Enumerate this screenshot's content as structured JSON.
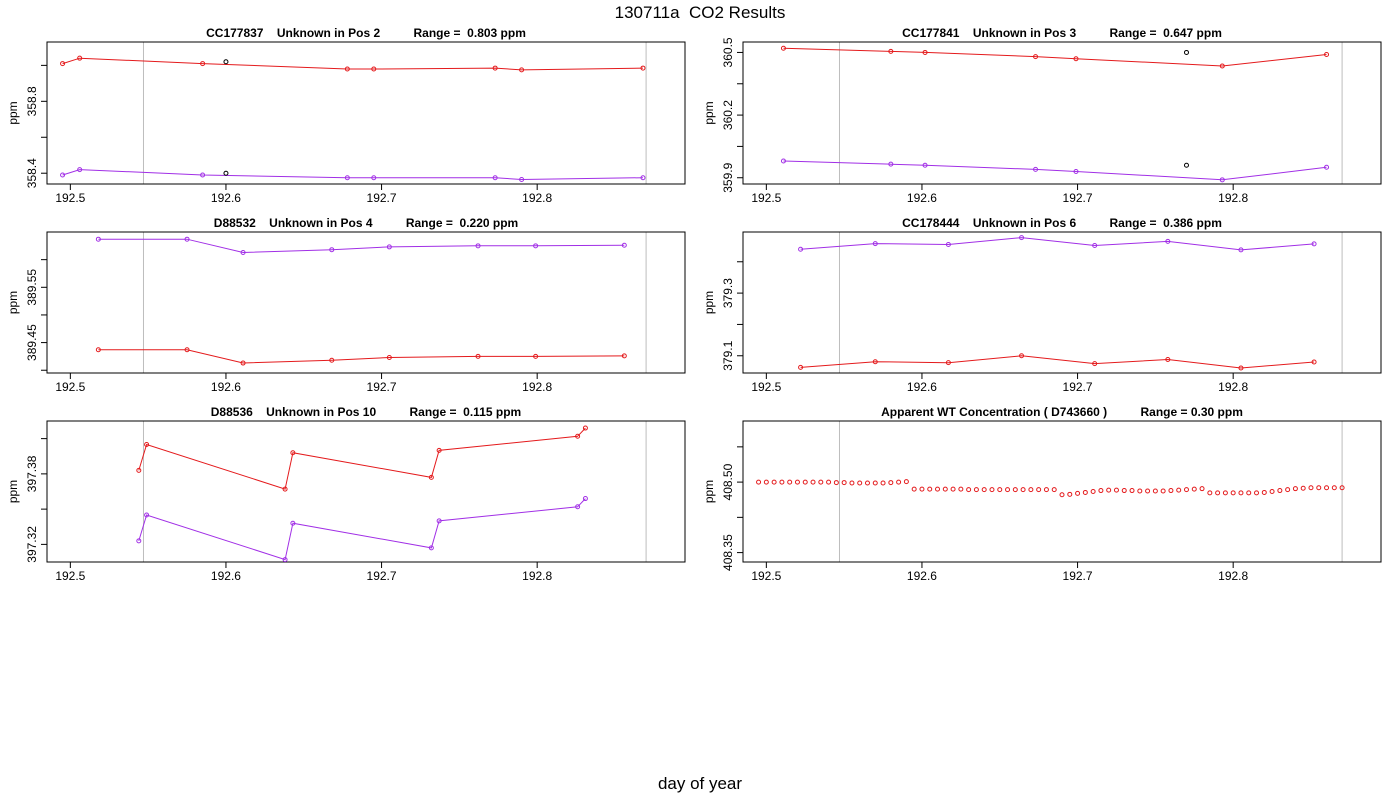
{
  "page_title": "130711a  CO2 Results",
  "x_axis_label": "day of year",
  "colors": {
    "series_a": "#e41a1c",
    "series_b": "#a12fe6",
    "outlier": "#000000",
    "vline": "#bdbdbd",
    "frame": "#000000"
  },
  "chart_data": [
    {
      "type": "line",
      "title": "CC177837    Unknown in Pos 2          Range =  0.803 ppm",
      "ylabel": "ppm",
      "xlim": [
        192.485,
        192.895
      ],
      "ylim": [
        358.34,
        359.13
      ],
      "x_ticks": [
        "192.5",
        "192.6",
        "192.7",
        "192.8"
      ],
      "y_ticks": [
        {
          "value": 358.4,
          "label": "358.4"
        },
        {
          "value": 358.6,
          "label": ""
        },
        {
          "value": 358.8,
          "label": "358.8"
        },
        {
          "value": 359.0,
          "label": ""
        }
      ],
      "vlines": [
        192.547,
        192.87
      ],
      "series": [
        {
          "color": "series_a",
          "x": [
            192.495,
            192.506,
            192.585,
            192.678,
            192.695,
            192.773,
            192.79,
            192.868
          ],
          "y": [
            359.01,
            359.04,
            359.01,
            358.98,
            358.98,
            358.985,
            358.975,
            358.985
          ]
        },
        {
          "color": "series_b",
          "x": [
            192.495,
            192.506,
            192.585,
            192.678,
            192.695,
            192.773,
            192.79,
            192.868
          ],
          "y": [
            358.39,
            358.42,
            358.39,
            358.375,
            358.375,
            358.375,
            358.365,
            358.375
          ]
        }
      ],
      "outliers": [
        {
          "x": 192.6,
          "y": 359.02
        },
        {
          "x": 192.6,
          "y": 358.4
        }
      ]
    },
    {
      "type": "line",
      "title": "CC177841    Unknown in Pos 3          Range =  0.647 ppm",
      "ylabel": "ppm",
      "xlim": [
        192.485,
        192.895
      ],
      "ylim": [
        359.87,
        360.55
      ],
      "x_ticks": [
        "192.5",
        "192.6",
        "192.7",
        "192.8"
      ],
      "y_ticks": [
        {
          "value": 359.9,
          "label": "359.9"
        },
        {
          "value": 360.05,
          "label": ""
        },
        {
          "value": 360.2,
          "label": "360.2"
        },
        {
          "value": 360.35,
          "label": ""
        },
        {
          "value": 360.5,
          "label": "360.5"
        }
      ],
      "vlines": [
        192.547,
        192.87
      ],
      "series": [
        {
          "color": "series_a",
          "x": [
            192.511,
            192.58,
            192.602,
            192.673,
            192.699,
            192.793,
            192.86
          ],
          "y": [
            360.52,
            360.505,
            360.5,
            360.48,
            360.47,
            360.435,
            360.49
          ]
        },
        {
          "color": "series_b",
          "x": [
            192.511,
            192.58,
            192.602,
            192.673,
            192.699,
            192.793,
            192.86
          ],
          "y": [
            359.98,
            359.965,
            359.96,
            359.94,
            359.93,
            359.89,
            359.95
          ]
        }
      ],
      "outliers": [
        {
          "x": 192.77,
          "y": 360.5
        },
        {
          "x": 192.77,
          "y": 359.96
        }
      ]
    },
    {
      "type": "line",
      "title": "D88532    Unknown in Pos 4          Range =  0.220 ppm",
      "ylabel": "ppm",
      "xlim": [
        192.485,
        192.895
      ],
      "ylim": [
        389.395,
        389.65
      ],
      "x_ticks": [
        "192.5",
        "192.6",
        "192.7",
        "192.8"
      ],
      "y_ticks": [
        {
          "value": 389.4,
          "label": ""
        },
        {
          "value": 389.45,
          "label": "389.45"
        },
        {
          "value": 389.5,
          "label": ""
        },
        {
          "value": 389.55,
          "label": "389.55"
        },
        {
          "value": 389.6,
          "label": ""
        }
      ],
      "vlines": [
        192.547,
        192.87
      ],
      "series": [
        {
          "color": "series_a",
          "x": [
            192.518,
            192.575,
            192.611,
            192.668,
            192.705,
            192.762,
            192.799,
            192.856
          ],
          "y": [
            389.437,
            389.437,
            389.413,
            389.418,
            389.423,
            389.425,
            389.425,
            389.426
          ]
        },
        {
          "color": "series_b",
          "x": [
            192.518,
            192.575,
            192.611,
            192.668,
            192.705,
            192.762,
            192.799,
            192.856
          ],
          "y": [
            389.637,
            389.637,
            389.613,
            389.618,
            389.623,
            389.625,
            389.625,
            389.626
          ]
        }
      ],
      "outliers": []
    },
    {
      "type": "line",
      "title": "CC178444    Unknown in Pos 6          Range =  0.386 ppm",
      "ylabel": "ppm",
      "xlim": [
        192.485,
        192.895
      ],
      "ylim": [
        379.045,
        379.495
      ],
      "x_ticks": [
        "192.5",
        "192.6",
        "192.7",
        "192.8"
      ],
      "y_ticks": [
        {
          "value": 379.1,
          "label": "379.1"
        },
        {
          "value": 379.2,
          "label": ""
        },
        {
          "value": 379.3,
          "label": "379.3"
        },
        {
          "value": 379.4,
          "label": ""
        }
      ],
      "vlines": [
        192.547,
        192.87
      ],
      "series": [
        {
          "color": "series_a",
          "x": [
            192.522,
            192.57,
            192.617,
            192.664,
            192.711,
            192.758,
            192.805,
            192.852
          ],
          "y": [
            379.063,
            379.081,
            379.078,
            379.1,
            379.075,
            379.088,
            379.061,
            379.08
          ]
        },
        {
          "color": "series_b",
          "x": [
            192.522,
            192.57,
            192.617,
            192.664,
            192.711,
            192.758,
            192.805,
            192.852
          ],
          "y": [
            379.44,
            379.458,
            379.455,
            379.477,
            379.452,
            379.465,
            379.438,
            379.457
          ]
        }
      ],
      "outliers": []
    },
    {
      "type": "line",
      "title": "D88536    Unknown in Pos 10          Range =  0.115 ppm",
      "ylabel": "ppm",
      "xlim": [
        192.485,
        192.895
      ],
      "ylim": [
        397.305,
        397.425
      ],
      "x_ticks": [
        "192.5",
        "192.6",
        "192.7",
        "192.8"
      ],
      "y_ticks": [
        {
          "value": 397.32,
          "label": "397.32"
        },
        {
          "value": 397.35,
          "label": ""
        },
        {
          "value": 397.38,
          "label": "397.38"
        },
        {
          "value": 397.41,
          "label": ""
        }
      ],
      "vlines": [
        192.547,
        192.87
      ],
      "series": [
        {
          "color": "series_a",
          "x": [
            192.544,
            192.549,
            192.638,
            192.643,
            192.732,
            192.737,
            192.826,
            192.831
          ],
          "y": [
            397.383,
            397.405,
            397.367,
            397.398,
            397.377,
            397.4,
            397.412,
            397.419
          ]
        },
        {
          "color": "series_b",
          "x": [
            192.544,
            192.549,
            192.638,
            192.643,
            192.732,
            192.737,
            192.826,
            192.831
          ],
          "y": [
            397.323,
            397.345,
            397.307,
            397.338,
            397.317,
            397.34,
            397.352,
            397.359
          ]
        }
      ],
      "outliers": []
    },
    {
      "type": "scatter",
      "title": "Apparent WT Concentration ( D743660 )          Range = 0.30 ppm",
      "ylabel": "ppm",
      "xlim": [
        192.485,
        192.895
      ],
      "ylim": [
        408.33,
        408.63
      ],
      "x_ticks": [
        "192.5",
        "192.6",
        "192.7",
        "192.8"
      ],
      "y_ticks": [
        {
          "value": 408.35,
          "label": "408.35"
        },
        {
          "value": 408.425,
          "label": ""
        },
        {
          "value": 408.5,
          "label": "408.50"
        },
        {
          "value": 408.575,
          "label": ""
        }
      ],
      "vlines": [
        192.547,
        192.87
      ],
      "series": [
        {
          "color": "series_a",
          "x": [
            192.495,
            192.5,
            192.505,
            192.51,
            192.515,
            192.52,
            192.525,
            192.53,
            192.535,
            192.54,
            192.545,
            192.55,
            192.555,
            192.56,
            192.565,
            192.57,
            192.575,
            192.58,
            192.585,
            192.59,
            192.595,
            192.6,
            192.605,
            192.61,
            192.615,
            192.62,
            192.625,
            192.63,
            192.635,
            192.64,
            192.645,
            192.65,
            192.655,
            192.66,
            192.665,
            192.67,
            192.675,
            192.68,
            192.685,
            192.69,
            192.695,
            192.7,
            192.705,
            192.71,
            192.715,
            192.72,
            192.725,
            192.73,
            192.735,
            192.74,
            192.745,
            192.75,
            192.755,
            192.76,
            192.765,
            192.77,
            192.775,
            192.78,
            192.785,
            192.79,
            192.795,
            192.8,
            192.805,
            192.81,
            192.815,
            192.82,
            192.825,
            192.83,
            192.835,
            192.84,
            192.845,
            192.85,
            192.855,
            192.86,
            192.865,
            192.87
          ],
          "y": [
            408.5,
            408.5,
            408.5,
            408.5,
            408.5,
            408.5,
            408.5,
            408.5,
            408.5,
            408.5,
            408.499,
            408.499,
            408.498,
            408.498,
            408.498,
            408.498,
            408.498,
            408.499,
            408.5,
            408.501,
            408.485,
            408.485,
            408.485,
            408.485,
            408.485,
            408.485,
            408.485,
            408.484,
            408.484,
            408.484,
            408.484,
            408.484,
            408.484,
            408.484,
            408.484,
            408.484,
            408.484,
            408.484,
            408.484,
            408.473,
            408.474,
            408.476,
            408.478,
            408.48,
            408.482,
            408.483,
            408.483,
            408.482,
            408.482,
            408.481,
            408.481,
            408.481,
            408.481,
            408.482,
            408.483,
            408.484,
            408.485,
            408.486,
            408.477,
            408.477,
            408.477,
            408.477,
            408.477,
            408.477,
            408.477,
            408.478,
            408.48,
            408.482,
            408.484,
            408.486,
            408.487,
            408.488,
            408.488,
            408.488,
            408.488,
            408.488
          ]
        }
      ],
      "outliers": []
    }
  ]
}
